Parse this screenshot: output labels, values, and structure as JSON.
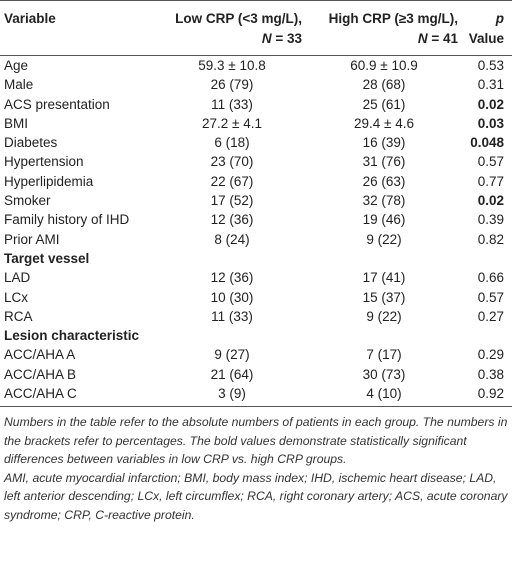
{
  "table": {
    "header": {
      "variable": "Variable",
      "low": {
        "label": "Low CRP (<3 mg/L),",
        "n_symbol": "N",
        "n_value": "= 33"
      },
      "high": {
        "label": "High CRP (≥3 mg/L),",
        "n_symbol": "N",
        "n_value": "= 41"
      },
      "p": {
        "symbol": "p",
        "label": "Value"
      }
    },
    "rows": [
      {
        "cells": [
          "Age",
          "59.3 ± 10.8",
          "60.9 ± 10.9",
          "0.53"
        ]
      },
      {
        "cells": [
          "Male",
          "26 (79)",
          "28 (68)",
          "0.31"
        ]
      },
      {
        "cells": [
          "ACS presentation",
          "11 (33)",
          "25 (61)",
          "0.02"
        ],
        "bold": true
      },
      {
        "cells": [
          "BMI",
          "27.2 ± 4.1",
          "29.4 ± 4.6",
          "0.03"
        ],
        "bold": true
      },
      {
        "cells": [
          "Diabetes",
          "6 (18)",
          "16 (39)",
          "0.048"
        ],
        "bold": true
      },
      {
        "cells": [
          "Hypertension",
          "23 (70)",
          "31 (76)",
          "0.57"
        ]
      },
      {
        "cells": [
          "Hyperlipidemia",
          "22 (67)",
          "26 (63)",
          "0.77"
        ]
      },
      {
        "cells": [
          "Smoker",
          "17 (52)",
          "32 (78)",
          "0.02"
        ],
        "bold": true
      },
      {
        "cells": [
          "Family history of IHD",
          "12 (36)",
          "19 (46)",
          "0.39"
        ]
      },
      {
        "cells": [
          "Prior AMI",
          "8 (24)",
          "9 (22)",
          "0.82"
        ]
      },
      {
        "section": "Target vessel"
      },
      {
        "cells": [
          "LAD",
          "12 (36)",
          "17 (41)",
          "0.66"
        ]
      },
      {
        "cells": [
          "LCx",
          "10 (30)",
          "15 (37)",
          "0.57"
        ]
      },
      {
        "cells": [
          "RCA",
          "11 (33)",
          "9 (22)",
          "0.27"
        ]
      },
      {
        "section": "Lesion characteristic"
      },
      {
        "cells": [
          "ACC/AHA A",
          "9 (27)",
          "7 (17)",
          "0.29"
        ]
      },
      {
        "cells": [
          "ACC/AHA B",
          "21 (64)",
          "30 (73)",
          "0.38"
        ]
      },
      {
        "cells": [
          "ACC/AHA C",
          "3 (9)",
          "4 (10)",
          "0.92"
        ]
      }
    ]
  },
  "footnotes": [
    "Numbers in the table refer to the absolute numbers of patients in each group. The numbers in the brackets refer to percentages. The bold values demonstrate statistically significant differences between variables in low CRP vs. high CRP groups.",
    "AMI, acute myocardial infarction; BMI, body mass index; IHD, ischemic heart disease; LAD, left anterior descending; LCx, left circumflex; RCA, right coronary artery; ACS, acute coronary syndrome; CRP, C-reactive protein."
  ]
}
